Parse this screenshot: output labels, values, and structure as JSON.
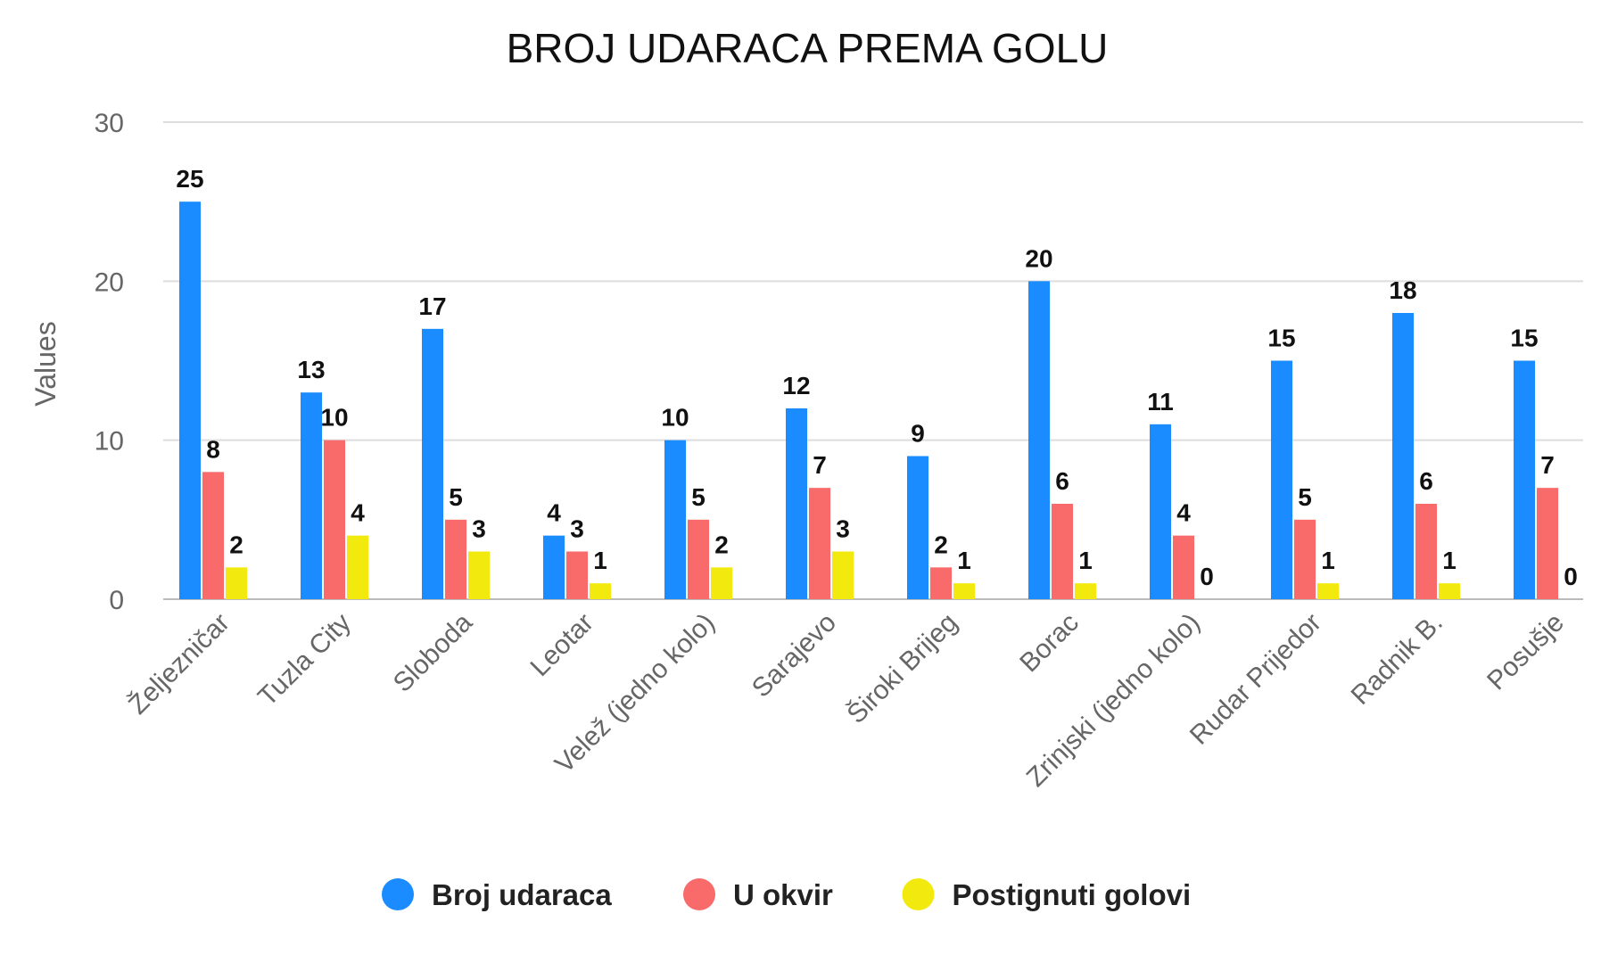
{
  "chart_data": {
    "type": "bar",
    "title": "BROJ UDARACA PREMA GOLU",
    "xlabel": "",
    "ylabel": "Values",
    "ylim": [
      0,
      30
    ],
    "yticks": [
      0,
      10,
      20,
      30
    ],
    "grid": true,
    "legend_position": "bottom",
    "categories": [
      "Željezničar",
      "Tuzla City",
      "Sloboda",
      "Leotar",
      "Velež (jedno kolo)",
      "Sarajevo",
      "Široki Brijeg",
      "Borac",
      "Zrinjski (jedno kolo)",
      "Rudar Prijedor",
      "Radnik B.",
      "Posušje"
    ],
    "series": [
      {
        "name": "Broj udaraca",
        "color": "#1a8cff",
        "values": [
          25,
          13,
          17,
          4,
          10,
          12,
          9,
          20,
          11,
          15,
          18,
          15
        ]
      },
      {
        "name": "U okvir",
        "color": "#f96b6b",
        "values": [
          8,
          10,
          5,
          3,
          5,
          7,
          2,
          6,
          4,
          5,
          6,
          7
        ]
      },
      {
        "name": "Postignuti golovi",
        "color": "#f2ea0e",
        "values": [
          2,
          4,
          3,
          1,
          2,
          3,
          1,
          1,
          0,
          1,
          1,
          0
        ]
      }
    ]
  },
  "colors": {
    "grid": "#dddddd",
    "axis": "#bbbbbb"
  }
}
